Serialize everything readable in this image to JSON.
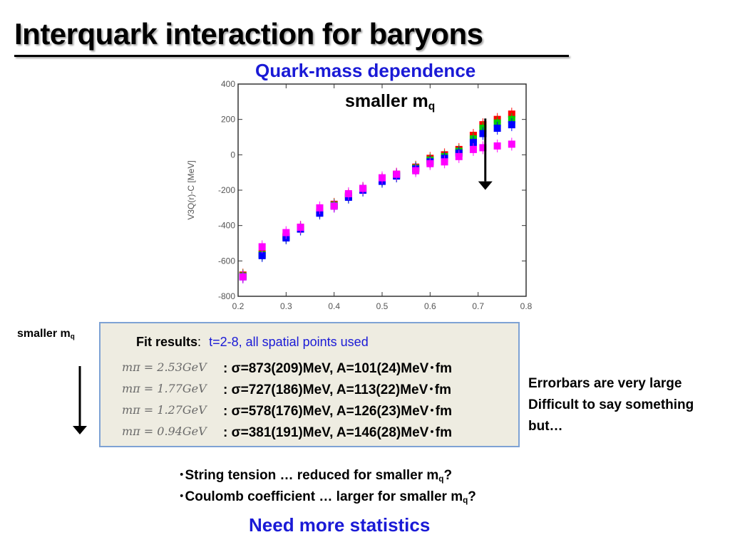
{
  "slide": {
    "title": "Interquark interaction for baryons",
    "chart_subtitle": "Quark-mass dependence",
    "mass_label_main": "smaller m",
    "mass_label_sub": "q",
    "side_label_main": "smaller m",
    "side_label_sub": "q",
    "fit": {
      "label": "Fit results",
      "colon": ":",
      "detail": "t=2-8, all spatial points used",
      "rows": [
        {
          "mpi": "mπ = 2.53GeV",
          "result": ": σ=873(209)MeV, A=101(24)MeV･fm"
        },
        {
          "mpi": "mπ = 1.77GeV",
          "result": ": σ=727(186)MeV, A=113(22)MeV･fm"
        },
        {
          "mpi": "mπ = 1.27GeV",
          "result": ": σ=578(176)MeV, A=126(23)MeV･fm"
        },
        {
          "mpi": "mπ = 0.94GeV",
          "result": ": σ=381(191)MeV, A=146(28)MeV･fm"
        }
      ]
    },
    "note_lines": [
      "Errorbars are very large",
      "Difficult to say something",
      "but…"
    ],
    "bullets": [
      {
        "text": "･String tension … reduced for smaller m",
        "sub": "q",
        "suffix": "?"
      },
      {
        "text": "･Coulomb coefficient … larger for smaller m",
        "sub": "q",
        "suffix": "?"
      }
    ],
    "conclusion": "Need more statistics"
  },
  "chart_data": {
    "type": "scatter",
    "title": "",
    "xlabel": "",
    "ylabel": "V3Q(r)-C [MeV]",
    "xlim": [
      0.2,
      0.8
    ],
    "ylim": [
      -800,
      400
    ],
    "x_ticks": [
      "0.2",
      "0.3",
      "0.4",
      "0.5",
      "0.6",
      "0.7",
      "0.8"
    ],
    "y_ticks": [
      "400",
      "200",
      "0",
      "-200",
      "-400",
      "-600",
      "-800"
    ],
    "grid": false,
    "series": [
      {
        "color": "#ff0000",
        "x": [
          0.21,
          0.25,
          0.3,
          0.33,
          0.37,
          0.4,
          0.43,
          0.46,
          0.5,
          0.53,
          0.57,
          0.6,
          0.63,
          0.66,
          0.69,
          0.71,
          0.74,
          0.77
        ],
        "y": [
          -680,
          -560,
          -460,
          -410,
          -320,
          -280,
          -230,
          -190,
          -140,
          -110,
          -70,
          -20,
          0,
          30,
          110,
          170,
          200,
          230
        ]
      },
      {
        "color": "#00cc00",
        "x": [
          0.21,
          0.25,
          0.3,
          0.33,
          0.37,
          0.4,
          0.43,
          0.46,
          0.5,
          0.53,
          0.57,
          0.6,
          0.63,
          0.66,
          0.69,
          0.71,
          0.74,
          0.77
        ],
        "y": [
          -685,
          -565,
          -465,
          -415,
          -325,
          -285,
          -235,
          -195,
          -145,
          -115,
          -75,
          -30,
          -10,
          20,
          90,
          150,
          180,
          200
        ]
      },
      {
        "color": "#0000ff",
        "x": [
          0.21,
          0.25,
          0.3,
          0.33,
          0.37,
          0.4,
          0.43,
          0.46,
          0.5,
          0.53,
          0.57,
          0.6,
          0.63,
          0.66,
          0.69,
          0.71,
          0.74,
          0.77
        ],
        "y": [
          -690,
          -570,
          -470,
          -420,
          -330,
          -290,
          -240,
          -200,
          -150,
          -120,
          -80,
          -40,
          -20,
          10,
          70,
          120,
          150,
          170
        ]
      },
      {
        "color": "#ff00ff",
        "x": [
          0.21,
          0.25,
          0.3,
          0.33,
          0.37,
          0.4,
          0.43,
          0.46,
          0.5,
          0.53,
          0.57,
          0.6,
          0.63,
          0.66,
          0.69,
          0.71,
          0.74,
          0.77
        ],
        "y": [
          -690,
          -520,
          -440,
          -410,
          -300,
          -290,
          -220,
          -190,
          -130,
          -110,
          -90,
          -50,
          -40,
          -10,
          30,
          40,
          50,
          60
        ]
      }
    ]
  }
}
